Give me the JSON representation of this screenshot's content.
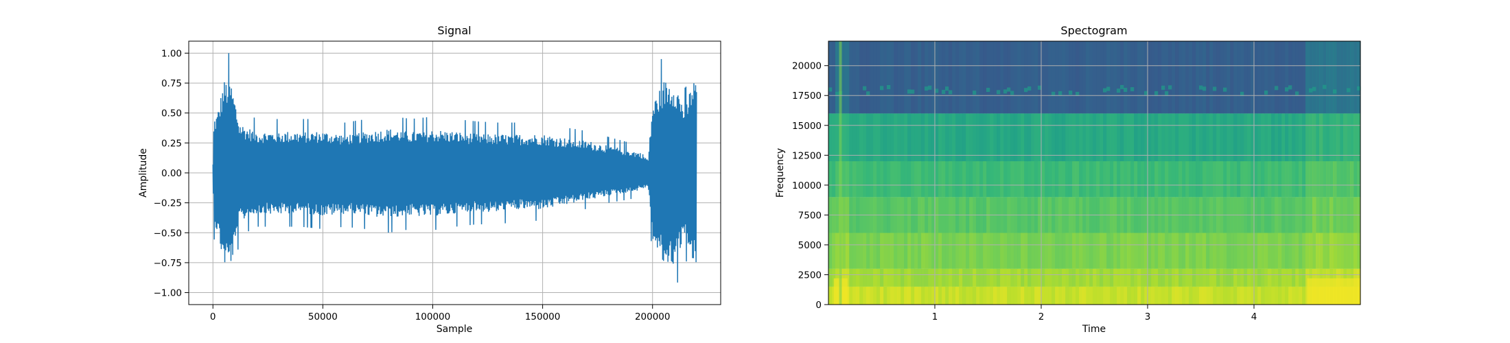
{
  "chart_data": [
    {
      "type": "line",
      "title": "Signal",
      "xlabel": "Sample",
      "ylabel": "Amplitude",
      "xlim": [
        -11000,
        231000
      ],
      "ylim": [
        -1.1,
        1.1
      ],
      "grid": true,
      "color": "#1f77b4",
      "x_ticks": [
        0,
        50000,
        100000,
        150000,
        200000
      ],
      "x_tick_labels": [
        "0",
        "50000",
        "100000",
        "150000",
        "200000"
      ],
      "y_ticks": [
        1.0,
        0.75,
        0.5,
        0.25,
        0.0,
        -0.25,
        -0.5,
        -0.75,
        -1.0
      ],
      "y_tick_labels": [
        "1.00",
        "0.75",
        "0.50",
        "0.25",
        "0.00",
        "−0.25",
        "−0.50",
        "−0.75",
        "−1.00"
      ],
      "envelope": {
        "x": [
          0,
          500,
          2000,
          5000,
          8000,
          10000,
          12000,
          15000,
          20000,
          30000,
          40000,
          50000,
          60000,
          70000,
          80000,
          90000,
          100000,
          110000,
          120000,
          130000,
          140000,
          150000,
          160000,
          170000,
          180000,
          190000,
          195000,
          198000,
          200000,
          205000,
          210000,
          215000,
          218000,
          220000
        ],
        "upper": [
          0.1,
          0.6,
          0.65,
          1.0,
          1.0,
          0.8,
          0.55,
          0.5,
          0.45,
          0.45,
          0.45,
          0.45,
          0.42,
          0.45,
          0.48,
          0.45,
          0.47,
          0.45,
          0.43,
          0.42,
          0.42,
          0.42,
          0.38,
          0.35,
          0.3,
          0.25,
          0.22,
          0.15,
          0.75,
          1.0,
          1.0,
          0.7,
          1.0,
          1.0
        ],
        "lower": [
          -0.1,
          -0.55,
          -0.65,
          -1.0,
          -1.0,
          -0.85,
          -0.55,
          -0.5,
          -0.45,
          -0.45,
          -0.45,
          -0.47,
          -0.45,
          -0.47,
          -0.5,
          -0.47,
          -0.48,
          -0.45,
          -0.43,
          -0.43,
          -0.4,
          -0.4,
          -0.35,
          -0.3,
          -0.25,
          -0.22,
          -0.18,
          -0.15,
          -0.75,
          -1.0,
          -1.0,
          -0.7,
          -1.0,
          -1.0
        ]
      }
    },
    {
      "type": "heatmap",
      "title": "Spectogram",
      "xlabel": "Time",
      "ylabel": "Frequency",
      "xlim": [
        0,
        5
      ],
      "ylim": [
        0,
        22050
      ],
      "grid": true,
      "colormap": "viridis",
      "x_ticks": [
        1,
        2,
        3,
        4
      ],
      "x_tick_labels": [
        "1",
        "2",
        "3",
        "4"
      ],
      "y_ticks": [
        0,
        2500,
        5000,
        7500,
        10000,
        12500,
        15000,
        17500,
        20000
      ],
      "y_tick_labels": [
        "0",
        "2500",
        "5000",
        "7500",
        "10000",
        "12500",
        "15000",
        "17500",
        "20000"
      ],
      "band_edges_hz": [
        0,
        1500,
        3000,
        6000,
        9000,
        12000,
        16000,
        22050
      ],
      "band_levels": [
        0.92,
        0.86,
        0.8,
        0.74,
        0.68,
        0.6,
        0.3
      ],
      "bright_time_ranges": [
        [
          0.05,
          0.18
        ],
        [
          4.5,
          5.0
        ]
      ]
    }
  ]
}
